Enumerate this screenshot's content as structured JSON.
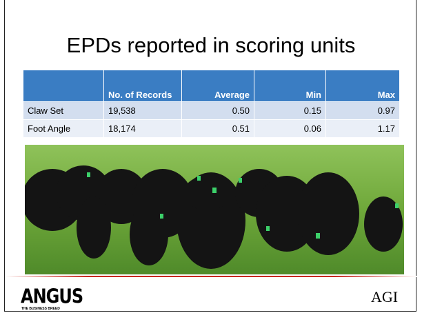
{
  "header": {
    "title": "EPDs reported in scoring units"
  },
  "table": {
    "columns": [
      "",
      "No. of Records",
      "Average",
      "Min",
      "Max"
    ],
    "rows": [
      [
        "Claw Set",
        "19,538",
        "0.50",
        "0.15",
        "0.97"
      ],
      [
        "Foot Angle",
        "18,174",
        "0.51",
        "0.06",
        "1.17"
      ]
    ]
  },
  "footer": {
    "left_logo": "ANGUS",
    "left_tagline": "THE BUSINESS BREED",
    "right_logo": "AGI"
  }
}
